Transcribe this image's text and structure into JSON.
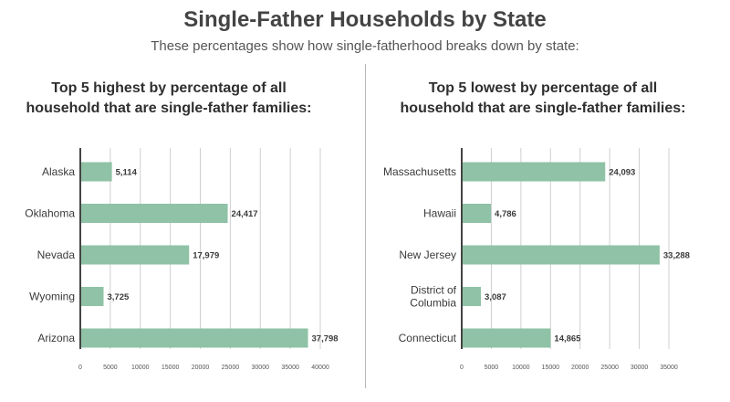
{
  "title": "Single-Father Households by State",
  "subtitle": "These percentages show how single-fatherhood breaks down by state:",
  "colors": {
    "bar": "#8fc2a6",
    "grid": "#cfcfcf",
    "axis": "#444444"
  },
  "chart_data": [
    {
      "type": "bar",
      "orientation": "horizontal",
      "title_lines": [
        "Top 5 highest by percentage of all",
        "household that are single-father families:"
      ],
      "categories": [
        "Alaska",
        "Oklahoma",
        "Nevada",
        "Wyoming",
        "Arizona"
      ],
      "values": [
        5114,
        24417,
        17979,
        3725,
        37798
      ],
      "value_labels": [
        "5,114",
        "24,417",
        "17,979",
        "3,725",
        "37,798"
      ],
      "ticks": [
        0,
        5000,
        10000,
        15000,
        20000,
        25000,
        30000,
        35000,
        40000
      ],
      "xlim": [
        0,
        40000
      ],
      "grid": true
    },
    {
      "type": "bar",
      "orientation": "horizontal",
      "title_lines": [
        "Top 5 lowest by percentage of all",
        "household that are single-father families:"
      ],
      "categories": [
        "Massachusetts",
        "Hawaii",
        "New Jersey",
        "District of Columbia",
        "Connecticut"
      ],
      "category_lines": [
        [
          "Massachusetts"
        ],
        [
          "Hawaii"
        ],
        [
          "New Jersey"
        ],
        [
          "District of",
          "Columbia"
        ],
        [
          "Connecticut"
        ]
      ],
      "values": [
        24093,
        4786,
        33288,
        3087,
        14865
      ],
      "value_labels": [
        "24,093",
        "4,786",
        "33,288",
        "3,087",
        "14,865"
      ],
      "ticks": [
        0,
        5000,
        10000,
        15000,
        20000,
        25000,
        30000,
        35000
      ],
      "xlim": [
        0,
        35000
      ],
      "grid": true
    }
  ]
}
